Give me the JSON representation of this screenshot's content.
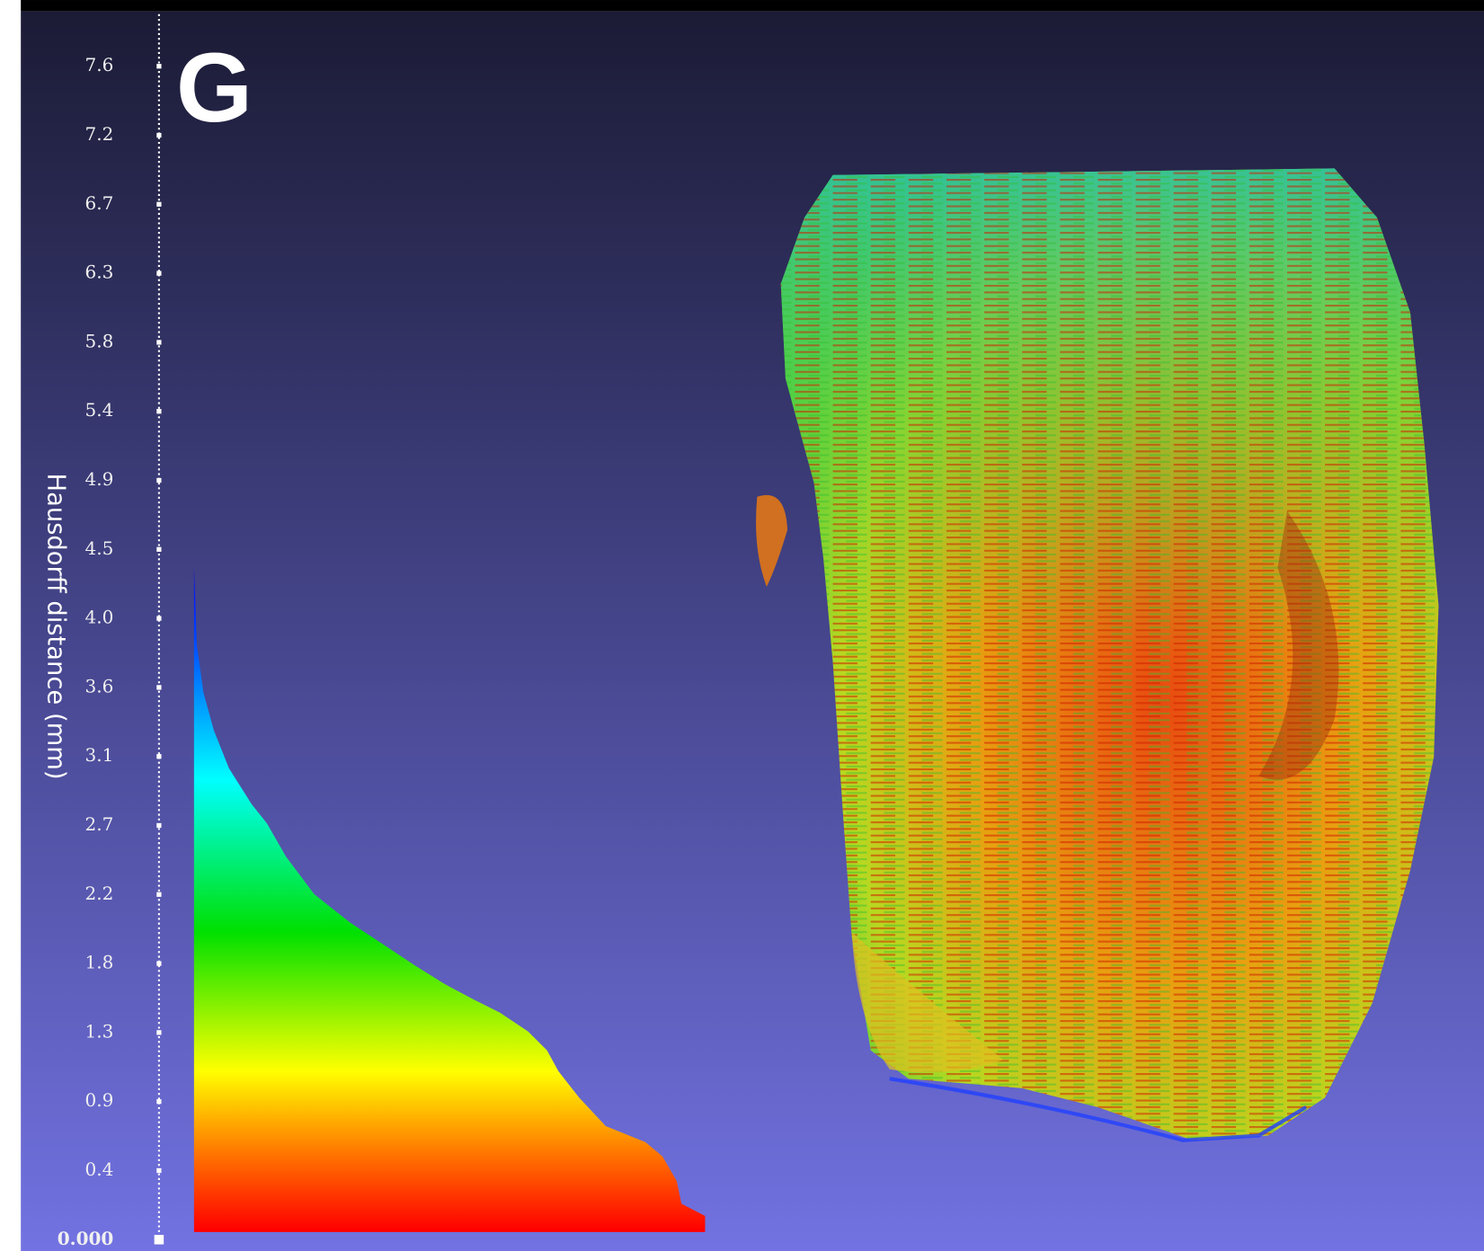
{
  "panel_label": "G",
  "axis_title": "Hausdorff distance (mm)",
  "scale_ticks": [
    "7.6",
    "7.2",
    "6.7",
    "6.3",
    "5.8",
    "5.4",
    "4.9",
    "4.5",
    "4.0",
    "3.6",
    "3.1",
    "2.7",
    "2.2",
    "1.8",
    "1.3",
    "0.9",
    "0.4",
    "0.000"
  ]
}
